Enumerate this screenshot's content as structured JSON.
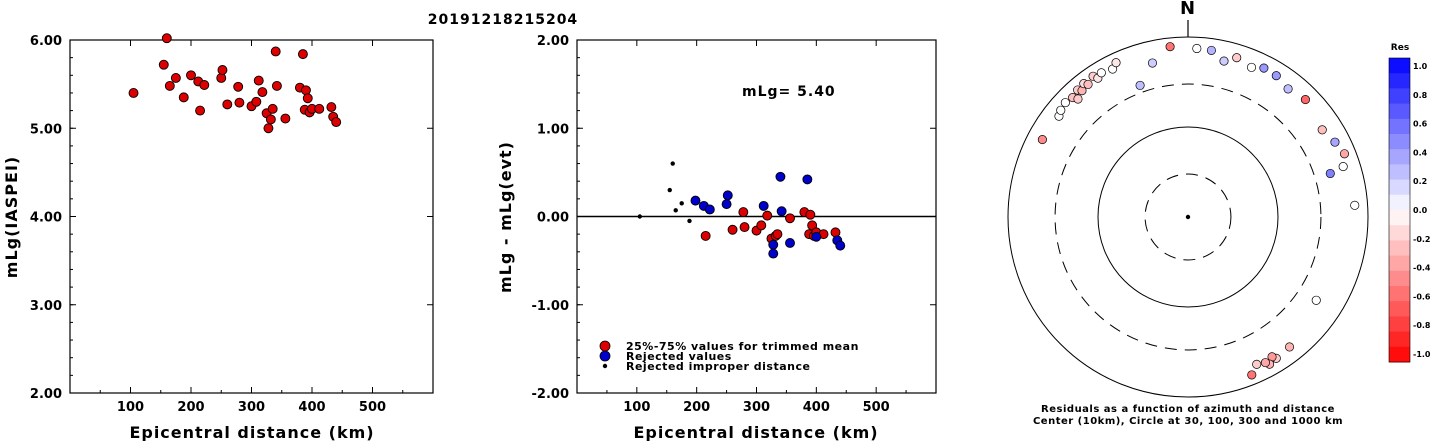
{
  "title": "20191218215204",
  "chart_data": [
    {
      "type": "scatter",
      "name": "magnitude-vs-distance",
      "xlabel": "Epicentral distance (km)",
      "ylabel": "mLg(IASPEI)",
      "xlim": [
        0,
        600
      ],
      "ylim": [
        2.0,
        6.0
      ],
      "xticks": [
        "100",
        "200",
        "300",
        "400",
        "500"
      ],
      "yticks": [
        "2.00",
        "3.00",
        "4.00",
        "5.00",
        "6.00"
      ],
      "points": [
        [
          105,
          5.4
        ],
        [
          155,
          5.72
        ],
        [
          160,
          6.02
        ],
        [
          165,
          5.48
        ],
        [
          175,
          5.57
        ],
        [
          188,
          5.35
        ],
        [
          200,
          5.6
        ],
        [
          212,
          5.53
        ],
        [
          215,
          5.2
        ],
        [
          222,
          5.49
        ],
        [
          250,
          5.57
        ],
        [
          252,
          5.66
        ],
        [
          260,
          5.27
        ],
        [
          278,
          5.47
        ],
        [
          280,
          5.29
        ],
        [
          300,
          5.25
        ],
        [
          308,
          5.3
        ],
        [
          312,
          5.54
        ],
        [
          318,
          5.41
        ],
        [
          325,
          5.17
        ],
        [
          328,
          5.0
        ],
        [
          332,
          5.1
        ],
        [
          335,
          5.22
        ],
        [
          340,
          5.87
        ],
        [
          342,
          5.48
        ],
        [
          356,
          5.11
        ],
        [
          380,
          5.46
        ],
        [
          385,
          5.84
        ],
        [
          388,
          5.21
        ],
        [
          390,
          5.43
        ],
        [
          393,
          5.34
        ],
        [
          396,
          5.18
        ],
        [
          400,
          5.22
        ],
        [
          412,
          5.22
        ],
        [
          432,
          5.24
        ],
        [
          435,
          5.13
        ],
        [
          440,
          5.07
        ]
      ]
    },
    {
      "type": "scatter",
      "name": "residual-vs-distance",
      "xlabel": "Epicentral distance (km)",
      "ylabel": "mLg - mLg(evt)",
      "annotation": "mLg= 5.40",
      "xlim": [
        0,
        600
      ],
      "ylim": [
        -2.0,
        2.0
      ],
      "xticks": [
        "100",
        "200",
        "300",
        "400",
        "500"
      ],
      "yticks": [
        "-2.00",
        "-1.00",
        "0.00",
        "1.00",
        "2.00"
      ],
      "zero_line": 0,
      "legend": [
        "25%-75% values for trimmed mean",
        "Rejected values",
        "Rejected improper distance"
      ],
      "series": [
        {
          "name": "25%-75% values for trimmed mean",
          "color": "#dd0000",
          "points": [
            [
              215,
              -0.22
            ],
            [
              260,
              -0.15
            ],
            [
              278,
              0.05
            ],
            [
              280,
              -0.12
            ],
            [
              300,
              -0.16
            ],
            [
              308,
              -0.1
            ],
            [
              318,
              0.01
            ],
            [
              325,
              -0.25
            ],
            [
              332,
              -0.22
            ],
            [
              335,
              -0.2
            ],
            [
              356,
              -0.02
            ],
            [
              380,
              0.05
            ],
            [
              388,
              -0.2
            ],
            [
              390,
              0.02
            ],
            [
              393,
              -0.1
            ],
            [
              396,
              -0.22
            ],
            [
              400,
              -0.18
            ],
            [
              412,
              -0.2
            ],
            [
              432,
              -0.18
            ]
          ]
        },
        {
          "name": "Rejected values",
          "color": "#0000cc",
          "points": [
            [
              198,
              0.18
            ],
            [
              212,
              0.12
            ],
            [
              222,
              0.08
            ],
            [
              250,
              0.14
            ],
            [
              252,
              0.24
            ],
            [
              312,
              0.12
            ],
            [
              328,
              -0.32
            ],
            [
              328,
              -0.42
            ],
            [
              340,
              0.45
            ],
            [
              342,
              0.06
            ],
            [
              356,
              -0.3
            ],
            [
              385,
              0.42
            ],
            [
              400,
              -0.23
            ],
            [
              435,
              -0.27
            ],
            [
              440,
              -0.33
            ]
          ]
        },
        {
          "name": "Rejected improper distance",
          "color": "#000000",
          "points": [
            [
              105,
              0.0
            ],
            [
              155,
              0.3
            ],
            [
              160,
              0.6
            ],
            [
              165,
              0.07
            ],
            [
              175,
              0.15
            ],
            [
              188,
              -0.05
            ]
          ]
        }
      ]
    },
    {
      "type": "polar",
      "name": "residual-azimuth-distance",
      "north_label": "N",
      "caption_line1": "Residuals as a function of azimuth and distance",
      "caption_line2": "Center (10km), Circle at 30, 100, 300 and 1000 km",
      "rings_km": [
        30,
        100,
        300,
        1000
      ],
      "points": [
        [
          -62,
          680,
          -0.45
        ],
        [
          -52,
          660,
          0.0
        ],
        [
          -50,
          700,
          0.0
        ],
        [
          -47,
          730,
          0.0
        ],
        [
          -44,
          700,
          -0.25
        ],
        [
          -43,
          620,
          -0.2
        ],
        [
          -41,
          740,
          -0.2
        ],
        [
          -40,
          680,
          -0.3
        ],
        [
          -38,
          760,
          -0.15
        ],
        [
          -37,
          700,
          -0.25
        ],
        [
          -34,
          770,
          -0.2
        ],
        [
          -33,
          690,
          -0.1
        ],
        [
          -31,
          740,
          0.0
        ],
        [
          -27,
          700,
          0.0
        ],
        [
          -25,
          780,
          -0.1
        ],
        [
          -20,
          360,
          0.25
        ],
        [
          -13,
          570,
          0.2
        ],
        [
          -6,
          800,
          -0.55
        ],
        [
          3,
          750,
          0.0
        ],
        [
          8,
          740,
          0.3
        ],
        [
          13,
          600,
          0.2
        ],
        [
          17,
          710,
          -0.2
        ],
        [
          23,
          640,
          0.0
        ],
        [
          27,
          720,
          0.4
        ],
        [
          32,
          710,
          0.4
        ],
        [
          38,
          640,
          0.25
        ],
        [
          45,
          700,
          -0.6
        ],
        [
          57,
          600,
          -0.25
        ],
        [
          63,
          680,
          0.35
        ],
        [
          68,
          750,
          -0.35
        ],
        [
          72,
          650,
          0.0
        ],
        [
          73,
          450,
          0.5
        ],
        [
          86,
          720,
          0.0
        ],
        [
          123,
          500,
          0.0
        ],
        [
          142,
          680,
          -0.3
        ],
        [
          148,
          710,
          -0.2
        ],
        [
          149,
          650,
          -0.4
        ],
        [
          151,
          740,
          -0.3
        ],
        [
          152,
          680,
          -0.35
        ],
        [
          155,
          640,
          -0.2
        ],
        [
          158,
          780,
          -0.55
        ]
      ]
    }
  ],
  "colorbar": {
    "title": "Res",
    "labels": [
      "1.0",
      "0.8",
      "0.6",
      "0.4",
      "0.2",
      "0.0",
      "-0.2",
      "-0.4",
      "-0.6",
      "-0.8",
      "-1.0"
    ]
  }
}
